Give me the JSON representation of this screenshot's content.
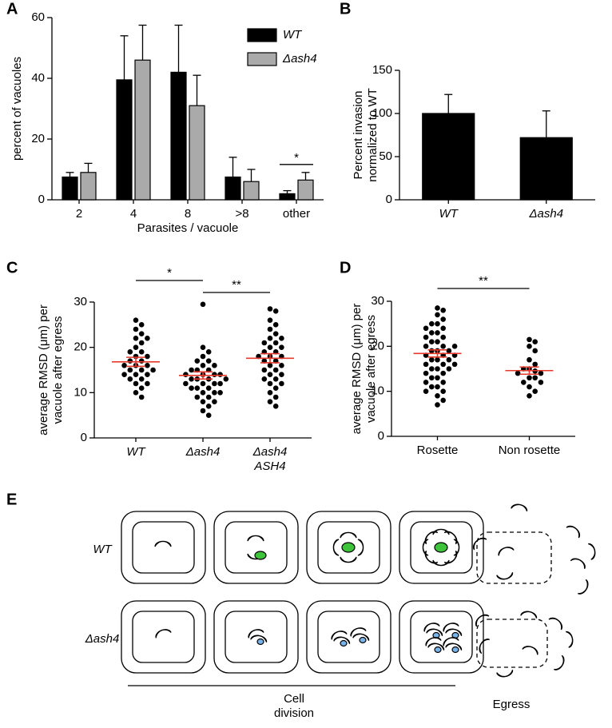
{
  "chart_data": [
    {
      "label": "A",
      "type": "bar",
      "categories": [
        "2",
        "4",
        "8",
        ">8",
        "other"
      ],
      "series": [
        {
          "name": "WT",
          "color": "#000000",
          "values": [
            7.5,
            39.5,
            42,
            7.5,
            2
          ],
          "errors": [
            1.5,
            14.5,
            15.5,
            6.5,
            1
          ]
        },
        {
          "name": "Δash4",
          "color": "#aaaaaa",
          "values": [
            9,
            46,
            31,
            6,
            6.5
          ],
          "errors": [
            3,
            11.5,
            10,
            4,
            2.5
          ]
        }
      ],
      "ylim": [
        0,
        60
      ],
      "yticks": [
        0,
        20,
        40,
        60
      ],
      "ylabel": "percent of vacuoles",
      "xlabel": "Parasites / vacuole",
      "legend": "top-right",
      "annotations": [
        {
          "text": "*",
          "category": "other"
        }
      ]
    },
    {
      "label": "B",
      "type": "bar",
      "categories": [
        "WT",
        "Δash4"
      ],
      "values": [
        100,
        72
      ],
      "errors": [
        22,
        31
      ],
      "color": "#000000",
      "ylim": [
        0,
        150
      ],
      "yticks": [
        0,
        50,
        100,
        150
      ],
      "ylabel": [
        "Percent invasion",
        "normalized to WT"
      ]
    },
    {
      "label": "C",
      "type": "dotplot",
      "categories": [
        "WT",
        "Δash4",
        [
          "Δash4",
          "ASH4"
        ]
      ],
      "groups": [
        {
          "values": [
            26,
            25,
            24,
            23,
            22,
            22,
            21,
            20,
            19,
            19,
            18,
            18,
            17,
            17,
            16,
            16,
            16,
            15,
            15,
            15,
            14,
            14,
            14,
            13,
            13,
            12,
            12,
            11,
            10,
            9
          ],
          "mean": 16.8,
          "sem": 1.0
        },
        {
          "values": [
            29.5,
            20,
            19,
            18,
            17,
            17,
            16,
            16,
            15,
            15,
            15,
            14,
            14,
            14,
            14,
            13,
            13,
            13,
            13,
            12,
            12,
            12,
            12,
            11,
            11,
            11,
            10,
            10,
            10,
            9,
            9,
            8,
            8,
            7,
            6,
            5
          ],
          "mean": 13.8,
          "sem": 0.8
        },
        {
          "values": [
            28.5,
            28,
            26,
            25,
            24,
            23,
            22,
            22,
            21,
            21,
            20,
            20,
            19,
            19,
            18,
            18,
            18,
            17,
            17,
            16,
            16,
            15,
            15,
            14,
            14,
            13,
            13,
            12,
            12,
            11,
            10,
            9,
            8,
            7
          ],
          "mean": 17.6,
          "sem": 1.0
        }
      ],
      "dot_color": "#000000",
      "mean_color": "#e8392d",
      "ylim": [
        0,
        30
      ],
      "yticks": [
        0,
        10,
        20,
        30
      ],
      "ylabel": [
        "average RMSD (μm) per",
        "vacuole after egress"
      ],
      "annotations": [
        {
          "text": "*",
          "from": 0,
          "to": 1
        },
        {
          "text": "**",
          "from": 1,
          "to": 2
        }
      ]
    },
    {
      "label": "D",
      "type": "dotplot",
      "categories": [
        "Rosette",
        "Non rosette"
      ],
      "groups": [
        {
          "values": [
            28.5,
            28,
            27,
            26,
            25,
            25,
            24,
            24,
            23,
            23,
            22,
            22,
            21,
            21,
            20,
            20,
            20,
            19,
            19,
            19,
            18,
            18,
            18,
            17,
            17,
            17,
            16,
            16,
            16,
            15,
            15,
            15,
            14,
            14,
            13,
            13,
            12,
            12,
            11,
            11,
            10,
            10,
            9,
            8,
            7
          ],
          "mean": 18.4,
          "sem": 0.8
        },
        {
          "values": [
            21.5,
            21,
            20,
            19,
            17,
            16,
            15,
            15,
            14.5,
            14,
            14,
            13,
            13,
            12,
            12,
            11,
            10,
            9
          ],
          "mean": 14.6,
          "sem": 0.8
        }
      ],
      "dot_color": "#000000",
      "mean_color": "#e8392d",
      "ylim": [
        0,
        30
      ],
      "yticks": [
        0,
        10,
        20,
        30
      ],
      "ylabel": [
        "average RMSD (μm) per",
        "vacuole after egress"
      ],
      "annotations": [
        {
          "text": "**",
          "from": 0,
          "to": 1
        }
      ]
    }
  ],
  "diagram": {
    "label": "E",
    "rows": [
      "WT",
      "Δash4"
    ],
    "stage_caption": [
      "Cell",
      "division"
    ],
    "egress_caption": "Egress"
  }
}
